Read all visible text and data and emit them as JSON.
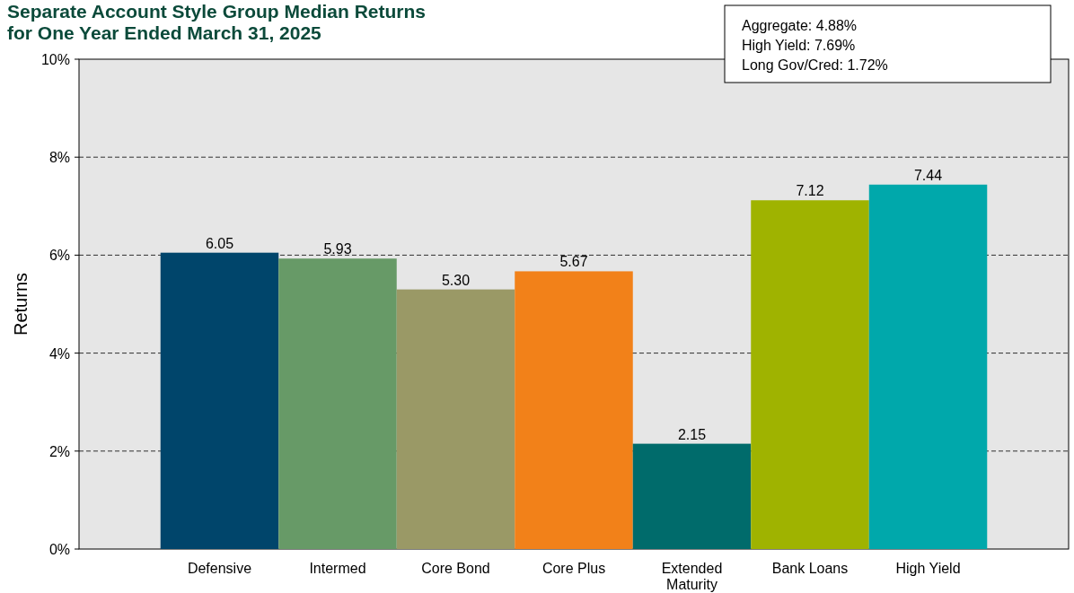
{
  "chart_data": {
    "type": "bar",
    "title": "Separate Account Style Group Median Returns",
    "subtitle": "for One Year Ended March 31, 2025",
    "ylabel": "Returns",
    "categories": [
      "Defensive",
      "Intermed",
      "Core Bond",
      "Core Plus",
      "Extended Maturity",
      "Bank Loans",
      "High Yield"
    ],
    "values": [
      6.05,
      5.93,
      5.3,
      5.67,
      2.15,
      7.12,
      7.44
    ],
    "value_labels": [
      "6.05",
      "5.93",
      "5.30",
      "5.67",
      "2.15",
      "7.12",
      "7.44"
    ],
    "colors": [
      "#00456b",
      "#679a67",
      "#9a9966",
      "#f28119",
      "#006b6b",
      "#9fb300",
      "#00a8ab"
    ],
    "ylim": [
      0,
      10
    ],
    "yticks": [
      {
        "value": 0,
        "label": "0%"
      },
      {
        "value": 2,
        "label": "2%"
      },
      {
        "value": 4,
        "label": "4%"
      },
      {
        "value": 6,
        "label": "6%"
      },
      {
        "value": 8,
        "label": "8%"
      },
      {
        "value": 10,
        "label": "10%"
      }
    ],
    "grid": "y",
    "annotations": [
      "Aggregate: 4.88%",
      "High Yield: 7.69%",
      "Long Gov/Cred: 1.72%"
    ]
  }
}
